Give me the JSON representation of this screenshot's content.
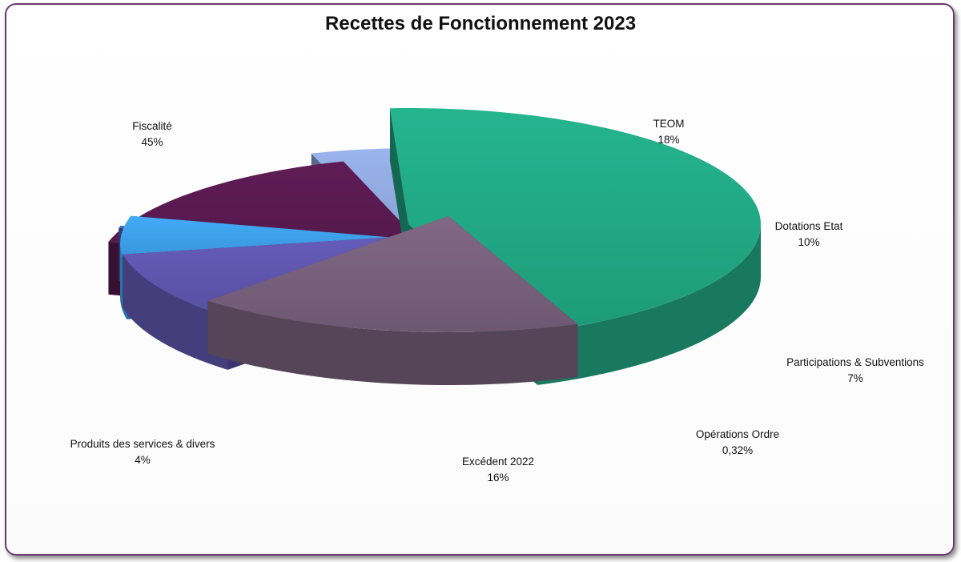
{
  "chart_data": {
    "type": "pie",
    "title": "Recettes de Fonctionnement 2023",
    "slices": [
      {
        "label": "Fiscalité",
        "value": 45,
        "value_label": "45%",
        "color": "#21a884"
      },
      {
        "label": "TEOM",
        "value": 18,
        "value_label": "18%",
        "color": "#77607c"
      },
      {
        "label": "Dotations Etat",
        "value": 10,
        "value_label": "10%",
        "color": "#5e56ae"
      },
      {
        "label": "Participations & Subventions",
        "value": 7,
        "value_label": "7%",
        "color": "#3d9ee6"
      },
      {
        "label": "Opérations Ordre",
        "value": 0.32,
        "value_label": "0,32%",
        "color": "#4a60b8"
      },
      {
        "label": "Excédent 2022",
        "value": 16,
        "value_label": "16%",
        "color": "#581a50"
      },
      {
        "label": "Produits des services & divers",
        "value": 4,
        "value_label": "4%",
        "color": "#8fa8dc"
      }
    ],
    "legend": "none",
    "style": "3d-exploded"
  }
}
